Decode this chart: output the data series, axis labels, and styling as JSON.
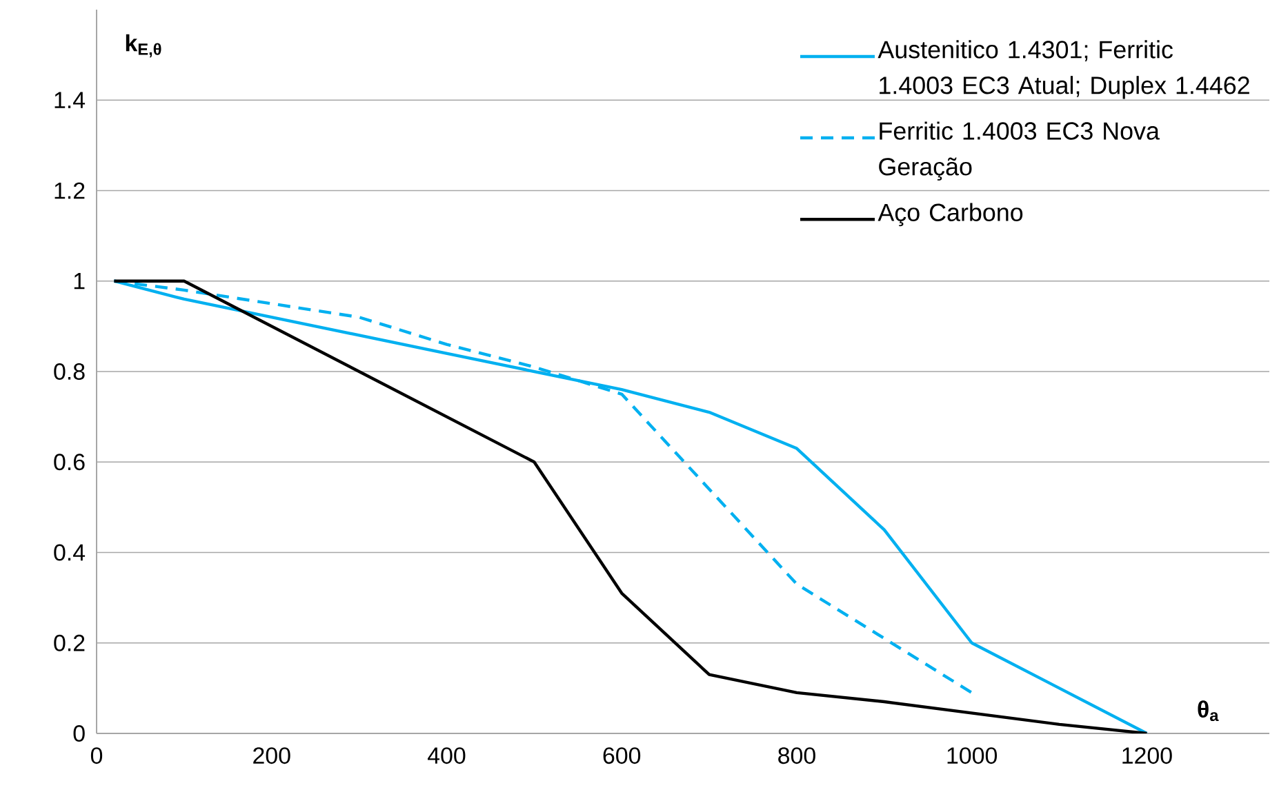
{
  "chart_data": {
    "type": "line",
    "xlabel": "θ$_{a}$",
    "ylabel": "k$_{E,θ}$",
    "xlim": [
      0,
      1340
    ],
    "ylim": [
      0,
      1.6
    ],
    "xticks": [
      0,
      200,
      400,
      600,
      800,
      1000,
      1200
    ],
    "yticks": [
      0,
      0.2,
      0.4,
      0.6,
      0.8,
      1,
      1.2,
      1.4
    ],
    "grid": "y",
    "legend": "top right",
    "marker": "none",
    "series": [
      {
        "name": "Austenitico 1.4301; Ferritic 1.4003 EC3 Atual; Duplex 1.4462",
        "color": "#00b0f0",
        "line_style": "solid",
        "x": [
          20,
          100,
          200,
          300,
          400,
          500,
          600,
          700,
          800,
          900,
          1000,
          1100,
          1200
        ],
        "values": [
          1,
          0.96,
          0.92,
          0.88,
          0.84,
          0.8,
          0.76,
          0.71,
          0.63,
          0.45,
          0.2,
          0.1,
          0
        ]
      },
      {
        "name": "Ferritic 1.4003 EC3 Nova Geração",
        "color": "#00b0f0",
        "line_style": "dashed",
        "x": [
          20,
          100,
          200,
          300,
          400,
          500,
          600,
          700,
          800,
          900,
          1000
        ],
        "values": [
          1,
          0.98,
          0.95,
          0.92,
          0.86,
          0.81,
          0.75,
          0.54,
          0.33,
          0.21,
          0.09
        ]
      },
      {
        "name": "Aço Carbono",
        "color": "#000000",
        "line_style": "solid",
        "x": [
          20,
          100,
          200,
          300,
          400,
          500,
          600,
          700,
          800,
          900,
          1000,
          1100,
          1200
        ],
        "values": [
          1,
          1,
          0.9,
          0.8,
          0.7,
          0.6,
          0.31,
          0.13,
          0.09,
          0.07,
          0.045,
          0.02,
          0
        ]
      }
    ]
  }
}
